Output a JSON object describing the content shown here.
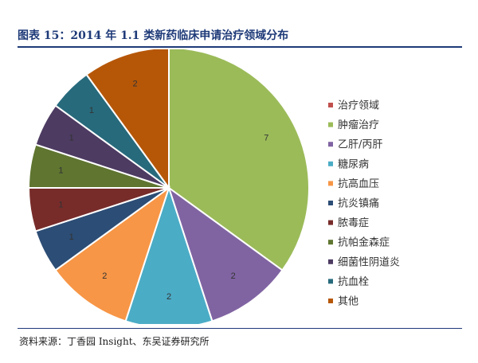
{
  "header": {
    "title": "图表 15：2014 年 1.1 类新药临床申请治疗领域分布"
  },
  "footer": {
    "source": "资料来源：丁香园 Insight、东吴证券研究所"
  },
  "chart_data": {
    "type": "pie",
    "categories": [
      "治疗领域",
      "肿瘤治疗",
      "乙肝/丙肝",
      "糖尿病",
      "抗高血压",
      "抗炎镇痛",
      "脓毒症",
      "抗帕金森症",
      "细菌性阴道炎",
      "抗血栓",
      "其他"
    ],
    "values": [
      0,
      7,
      2,
      2,
      2,
      1,
      1,
      1,
      1,
      1,
      2
    ],
    "data_labels": [
      "",
      "7",
      "2",
      "2",
      "2",
      "1",
      "1",
      "1",
      "1",
      "1",
      "2"
    ],
    "colors": [
      "#c0504d",
      "#9bbb59",
      "#8064a2",
      "#4bacc6",
      "#f79646",
      "#2c4d75",
      "#772c2a",
      "#5f7530",
      "#4d3b62",
      "#276a7c",
      "#b65708"
    ],
    "legend_position": "right",
    "start_angle": "12 o'clock",
    "direction": "clockwise"
  }
}
